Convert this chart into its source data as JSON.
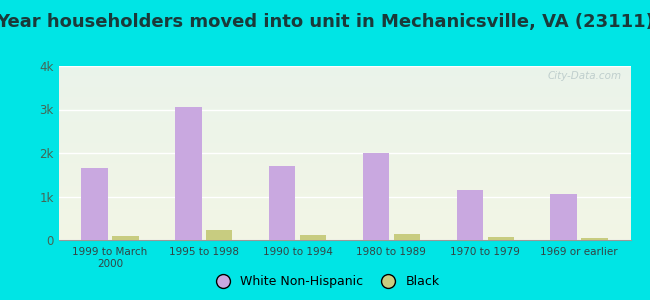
{
  "title": "Year householders moved into unit in Mechanicsville, VA (23111)",
  "categories": [
    "1999 to March\n2000",
    "1995 to 1998",
    "1990 to 1994",
    "1980 to 1989",
    "1970 to 1979",
    "1969 or earlier"
  ],
  "white_values": [
    1650,
    3050,
    1700,
    2000,
    1150,
    1050
  ],
  "black_values": [
    100,
    220,
    120,
    145,
    70,
    55
  ],
  "white_color": "#c9a8e0",
  "black_color": "#c8cc80",
  "ylim": [
    0,
    4000
  ],
  "yticks": [
    0,
    1000,
    2000,
    3000,
    4000
  ],
  "ytick_labels": [
    "0",
    "1k",
    "2k",
    "3k",
    "4k"
  ],
  "bg_outer": "#00e5e5",
  "title_fontsize": 13,
  "watermark": "City-Data.com"
}
